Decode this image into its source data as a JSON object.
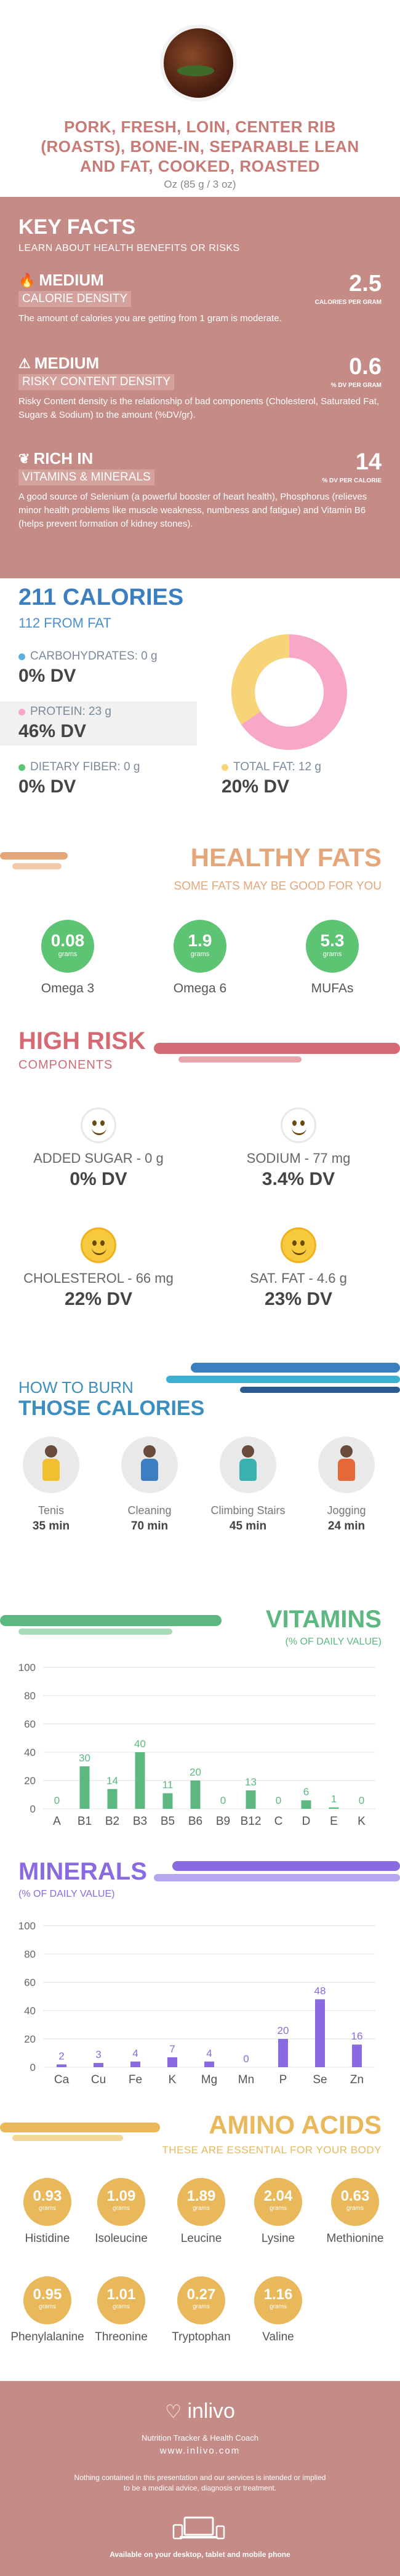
{
  "food": {
    "title": "PORK, FRESH, LOIN, CENTER RIB (ROASTS), BONE-IN, SEPARABLE LEAN AND FAT, COOKED, ROASTED",
    "portion": "Oz (85 g / 3 oz)"
  },
  "key_facts": {
    "title": "KEY FACTS",
    "subtitle": "LEARN ABOUT HEALTH BENEFITS OR RISKS",
    "items": [
      {
        "level": "MEDIUM",
        "label": "CALORIE DENSITY",
        "value": "2.5",
        "unit": "CALORIES PER GRAM",
        "desc": "The amount of calories you are getting from 1 gram is moderate.",
        "icon": "flame-icon"
      },
      {
        "level": "MEDIUM",
        "label": "RISKY CONTENT DENSITY",
        "value": "0.6",
        "unit": "% DV PER GRAM",
        "desc": "Risky Content density is the relationship of bad components (Cholesterol, Saturated Fat, Sugars & Sodium) to the amount (%DV/gr).",
        "icon": "warning-icon"
      },
      {
        "level": "RICH  IN",
        "label": "VITAMINS & MINERALS",
        "value": "14",
        "unit": "% DV PER CALORIE",
        "desc": "A good source of Selenium (a powerful booster of heart health), Phosphorus (relieves minor health problems like muscle weakness, numbness and fatigue) and Vitamin B6 (helps prevent formation of kidney stones).",
        "icon": "leaf-icon"
      }
    ]
  },
  "calories": {
    "title": "211 CALORIES",
    "from_fat": "112 FROM FAT",
    "carbs": {
      "label": "CARBOHYDRATES: 0 g",
      "dv": "0% DV",
      "color": "#5bb0e0"
    },
    "protein": {
      "label": "PROTEIN: 23 g",
      "dv": "46% DV",
      "color": "#f7a8c8"
    },
    "fiber": {
      "label": "DIETARY FIBER: 0 g",
      "dv": "0% DV",
      "color": "#5cc473"
    },
    "fat": {
      "label": "TOTAL FAT: 12 g",
      "dv": "20% DV",
      "color": "#f7d478"
    }
  },
  "healthy_fats": {
    "title": "HEALTHY FATS",
    "subtitle": "SOME FATS MAY BE GOOD FOR YOU",
    "unit": "grams",
    "items": [
      {
        "value": "0.08",
        "name": "Omega 3"
      },
      {
        "value": "1.9",
        "name": "Omega 6"
      },
      {
        "value": "5.3",
        "name": "MUFAs"
      }
    ]
  },
  "high_risk": {
    "title": "HIGH RISK",
    "subtitle": "COMPONENTS",
    "items": [
      {
        "name": "ADDED SUGAR - 0 g",
        "dv": "0% DV",
        "icon": "smiley-icon"
      },
      {
        "name": "SODIUM - 77 mg",
        "dv": "3.4% DV",
        "icon": "smiley-icon"
      },
      {
        "name": "CHOLESTEROL - 66 mg",
        "dv": "22% DV",
        "icon": "smiley-icon"
      },
      {
        "name": "SAT. FAT - 4.6 g",
        "dv": "23% DV",
        "icon": "smiley-icon"
      }
    ]
  },
  "burn": {
    "title1": "HOW TO BURN",
    "title2": "THOSE CALORIES",
    "items": [
      {
        "name": "Tenis",
        "time": "35 min",
        "color": "#f0c030"
      },
      {
        "name": "Cleaning",
        "time": "70 min",
        "color": "#3b7fc0"
      },
      {
        "name": "Climbing Stairs",
        "time": "45 min",
        "color": "#3bb0b0"
      },
      {
        "name": "Jogging",
        "time": "24 min",
        "color": "#e5683a"
      }
    ]
  },
  "vitamins": {
    "title": "VITAMINS",
    "subtitle": "(% OF DAILY VALUE)",
    "color": "#5cb880"
  },
  "minerals": {
    "title": "MINERALS",
    "subtitle": "(% OF DAILY VALUE)",
    "color": "#8a6ae0"
  },
  "chart_data": [
    {
      "type": "bar",
      "title": "VITAMINS",
      "ylabel": "(% OF DAILY VALUE)",
      "categories": [
        "A",
        "B1",
        "B2",
        "B3",
        "B5",
        "B6",
        "B9",
        "B12",
        "C",
        "D",
        "E",
        "K"
      ],
      "values": [
        0,
        30,
        14,
        40,
        11,
        20,
        0,
        13,
        0,
        6,
        1,
        0
      ],
      "yticks": [
        0,
        20,
        40,
        60,
        80,
        100
      ],
      "ylim": [
        0,
        100
      ],
      "grid": true
    },
    {
      "type": "bar",
      "title": "MINERALS",
      "ylabel": "(% OF DAILY VALUE)",
      "categories": [
        "Ca",
        "Cu",
        "Fe",
        "K",
        "Mg",
        "Mn",
        "P",
        "Se",
        "Zn"
      ],
      "values": [
        2,
        3,
        4,
        7,
        4,
        0,
        20,
        48,
        16
      ],
      "yticks": [
        0,
        20,
        40,
        60,
        80,
        100
      ],
      "ylim": [
        0,
        100
      ],
      "grid": true
    }
  ],
  "amino_acids": {
    "title": "AMINO ACIDS",
    "subtitle": "THESE ARE ESSENTIAL FOR YOUR BODY",
    "unit": "grams",
    "items": [
      {
        "value": "0.93",
        "name": "Histidine"
      },
      {
        "value": "1.09",
        "name": "Isoleucine"
      },
      {
        "value": "1.89",
        "name": "Leucine"
      },
      {
        "value": "2.04",
        "name": "Lysine"
      },
      {
        "value": "0.63",
        "name": "Methionine"
      },
      {
        "value": "0.95",
        "name": "Phenylalanine"
      },
      {
        "value": "1.01",
        "name": "Threonine"
      },
      {
        "value": "0.27",
        "name": "Tryptophan"
      },
      {
        "value": "1.16",
        "name": "Valine"
      }
    ]
  },
  "footer": {
    "brand": "inlivo",
    "tagline": "Nutrition Tracker & Health Coach",
    "url": "www.inlivo.com",
    "disclaimer1": "Nothing contained in this presentation and our services is intended or implied",
    "disclaimer2": "to be a medical advice, diagnosis or treatment.",
    "available": "Available on your desktop, tablet and mobile phone"
  }
}
